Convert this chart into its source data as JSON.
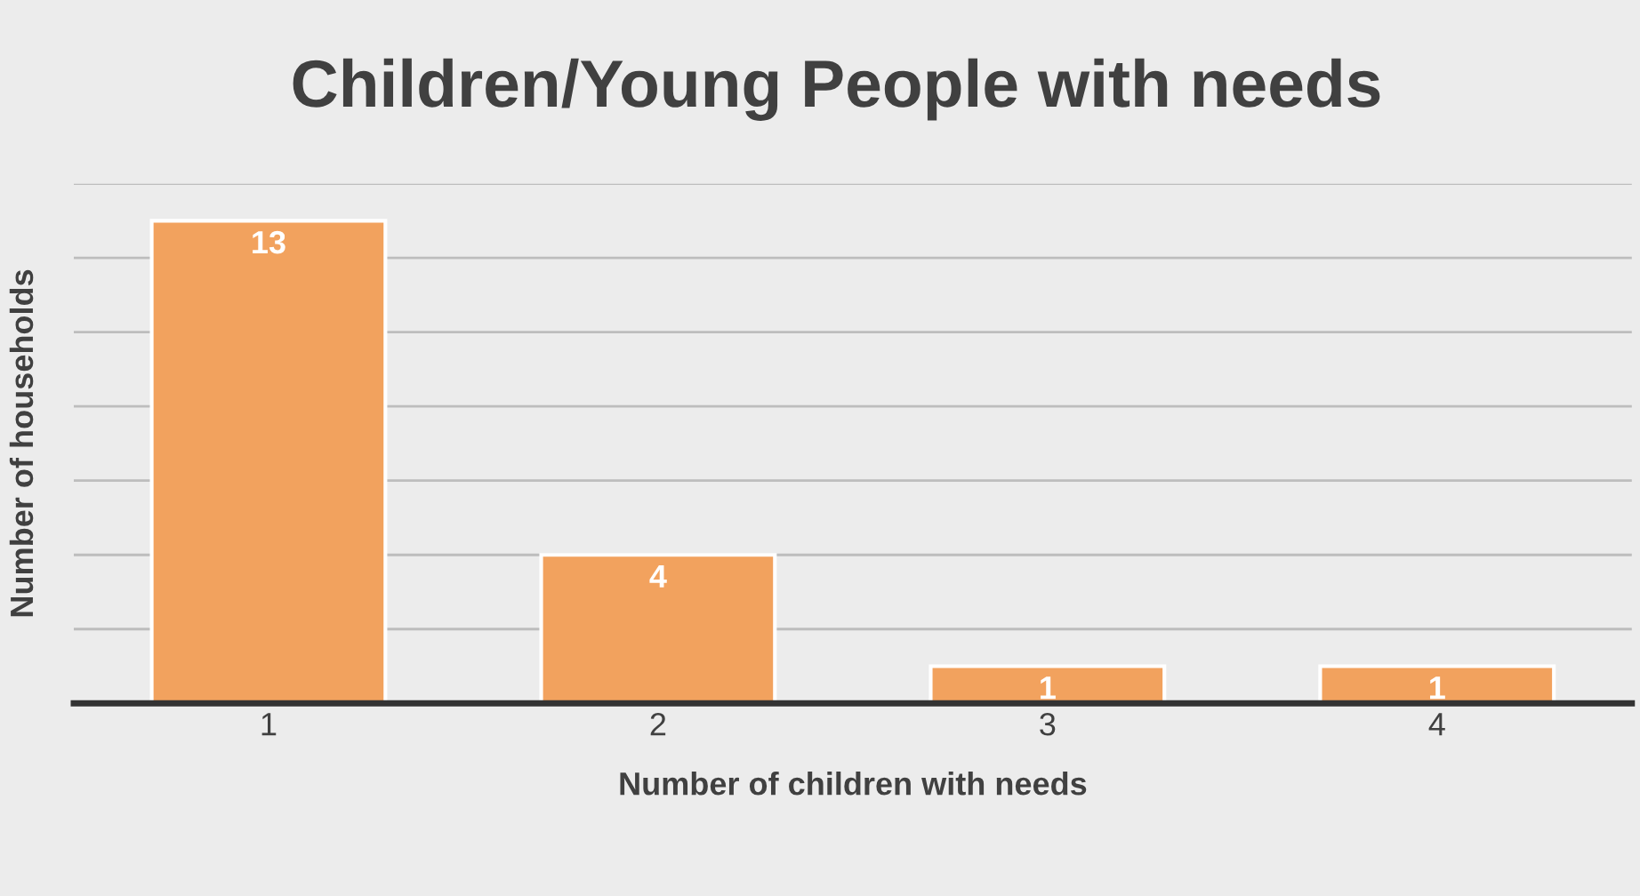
{
  "chart_data": {
    "type": "bar",
    "title": "Children/Young People with needs",
    "xlabel": "Number of children with needs",
    "ylabel": "Number of households",
    "categories": [
      "1",
      "2",
      "3",
      "4"
    ],
    "values": [
      13,
      4,
      1,
      1
    ],
    "color": "#f2a25e",
    "ylim": [
      0,
      14
    ],
    "yticks": [
      {
        "value": 0,
        "label": null
      },
      {
        "value": 2,
        "label": null
      },
      {
        "value": 4,
        "label": null
      },
      {
        "value": 6,
        "label": null
      },
      {
        "value": 8,
        "label": null
      },
      {
        "value": 10,
        "label": null
      },
      {
        "value": 12,
        "label": null
      },
      {
        "value": 14,
        "label": null
      }
    ],
    "grid": "y",
    "data_labels": true,
    "tick_labels": "x"
  }
}
